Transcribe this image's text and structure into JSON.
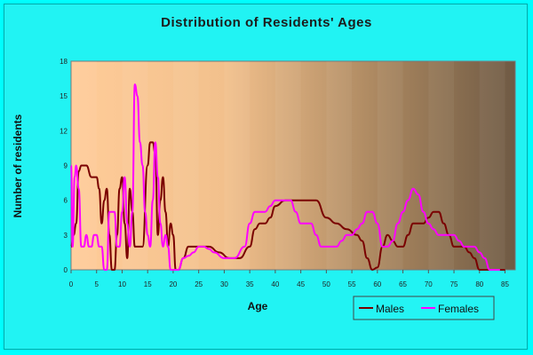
{
  "chart_data": {
    "type": "line",
    "title": "Distribution of Residents' Ages",
    "xlabel": "Age",
    "ylabel": "Number of residents",
    "xlim": [
      0,
      87
    ],
    "ylim": [
      0,
      18
    ],
    "xticks": [
      0,
      5,
      10,
      15,
      20,
      25,
      30,
      35,
      40,
      45,
      50,
      55,
      60,
      65,
      70,
      75,
      80,
      85
    ],
    "yticks": [
      0,
      3,
      6,
      9,
      12,
      15,
      18
    ],
    "grid": false,
    "legend_position": "bottom-right",
    "series": [
      {
        "name": "Males",
        "color": "#7a0000",
        "points": [
          [
            0,
            2
          ],
          [
            0.5,
            3
          ],
          [
            1,
            4
          ],
          [
            1.5,
            8.5
          ],
          [
            2,
            9
          ],
          [
            3,
            9
          ],
          [
            4,
            8
          ],
          [
            5,
            8
          ],
          [
            5.5,
            7
          ],
          [
            6,
            4
          ],
          [
            6.5,
            6
          ],
          [
            7,
            7
          ],
          [
            7.5,
            3
          ],
          [
            8,
            0
          ],
          [
            8.5,
            0
          ],
          [
            9,
            3
          ],
          [
            9.5,
            7
          ],
          [
            10,
            8
          ],
          [
            10.5,
            4
          ],
          [
            11,
            1
          ],
          [
            11.5,
            7
          ],
          [
            12,
            5
          ],
          [
            12.5,
            2
          ],
          [
            13,
            2
          ],
          [
            14,
            2
          ],
          [
            15,
            9
          ],
          [
            15.5,
            11
          ],
          [
            16,
            11
          ],
          [
            16.5,
            10
          ],
          [
            17,
            3
          ],
          [
            17.5,
            6
          ],
          [
            18,
            8
          ],
          [
            18.5,
            5
          ],
          [
            19,
            2
          ],
          [
            19.5,
            4
          ],
          [
            20,
            3
          ],
          [
            20.5,
            0
          ],
          [
            21,
            0
          ],
          [
            22,
            1
          ],
          [
            23,
            2
          ],
          [
            25,
            2
          ],
          [
            27,
            2
          ],
          [
            29,
            1.5
          ],
          [
            31,
            1
          ],
          [
            33,
            1
          ],
          [
            35,
            2
          ],
          [
            36,
            3.5
          ],
          [
            37,
            4
          ],
          [
            38,
            4
          ],
          [
            39,
            4.5
          ],
          [
            40,
            5.5
          ],
          [
            42,
            6
          ],
          [
            45,
            6
          ],
          [
            48,
            6
          ],
          [
            50,
            4.5
          ],
          [
            52,
            4
          ],
          [
            54,
            3.5
          ],
          [
            56,
            3
          ],
          [
            57,
            2.5
          ],
          [
            58,
            1
          ],
          [
            59,
            0
          ],
          [
            60,
            0.2
          ],
          [
            61,
            2
          ],
          [
            62,
            3
          ],
          [
            63,
            2.5
          ],
          [
            64,
            2
          ],
          [
            65,
            2
          ],
          [
            66,
            3
          ],
          [
            67,
            4
          ],
          [
            68,
            4
          ],
          [
            69,
            4
          ],
          [
            70,
            4.5
          ],
          [
            71,
            5
          ],
          [
            72,
            5
          ],
          [
            73,
            4
          ],
          [
            74,
            3
          ],
          [
            75,
            2
          ],
          [
            76,
            2
          ],
          [
            77,
            2
          ],
          [
            78,
            1.5
          ],
          [
            79,
            1
          ],
          [
            80,
            0
          ],
          [
            82,
            0
          ],
          [
            84,
            0
          ],
          [
            85,
            0
          ]
        ]
      },
      {
        "name": "Females",
        "color": "#ff00ff",
        "points": [
          [
            0,
            9
          ],
          [
            0.3,
            2
          ],
          [
            0.7,
            8
          ],
          [
            1,
            9
          ],
          [
            1.5,
            7
          ],
          [
            2,
            2
          ],
          [
            2.5,
            2
          ],
          [
            3,
            3
          ],
          [
            3.5,
            2
          ],
          [
            4,
            2
          ],
          [
            4.5,
            3
          ],
          [
            5,
            3
          ],
          [
            5.5,
            2
          ],
          [
            6,
            2
          ],
          [
            6.5,
            0
          ],
          [
            7,
            0
          ],
          [
            7.5,
            5
          ],
          [
            8,
            5
          ],
          [
            8.5,
            5
          ],
          [
            9,
            2
          ],
          [
            9.5,
            2
          ],
          [
            10,
            5
          ],
          [
            10.5,
            8
          ],
          [
            11,
            4
          ],
          [
            11.5,
            2
          ],
          [
            12,
            5
          ],
          [
            12.5,
            16
          ],
          [
            13,
            15
          ],
          [
            13.5,
            11
          ],
          [
            14,
            9
          ],
          [
            14.5,
            5
          ],
          [
            15,
            3
          ],
          [
            15.5,
            2
          ],
          [
            16,
            6
          ],
          [
            16.5,
            11
          ],
          [
            17,
            8
          ],
          [
            17.5,
            4
          ],
          [
            18,
            2
          ],
          [
            18.5,
            3
          ],
          [
            19,
            2
          ],
          [
            19.5,
            0
          ],
          [
            20,
            0
          ],
          [
            21,
            0
          ],
          [
            22,
            1
          ],
          [
            23,
            1.2
          ],
          [
            24,
            1.5
          ],
          [
            25,
            2
          ],
          [
            26,
            2
          ],
          [
            27,
            1.8
          ],
          [
            28,
            1.5
          ],
          [
            30,
            1
          ],
          [
            32,
            1
          ],
          [
            34,
            2
          ],
          [
            35,
            4
          ],
          [
            36,
            5
          ],
          [
            37,
            5
          ],
          [
            38,
            5
          ],
          [
            39,
            5.5
          ],
          [
            40,
            6
          ],
          [
            41,
            6
          ],
          [
            42,
            6
          ],
          [
            43,
            6
          ],
          [
            44,
            5
          ],
          [
            45,
            4
          ],
          [
            46,
            4
          ],
          [
            47,
            4
          ],
          [
            48,
            3
          ],
          [
            49,
            2
          ],
          [
            50,
            2
          ],
          [
            52,
            2
          ],
          [
            53,
            2.5
          ],
          [
            54,
            3
          ],
          [
            55,
            3
          ],
          [
            56,
            3.5
          ],
          [
            57,
            4
          ],
          [
            58,
            5
          ],
          [
            59,
            5
          ],
          [
            60,
            4
          ],
          [
            61,
            2
          ],
          [
            62,
            2
          ],
          [
            63,
            2.5
          ],
          [
            64,
            4
          ],
          [
            65,
            5
          ],
          [
            66,
            6
          ],
          [
            67,
            7
          ],
          [
            68,
            6.5
          ],
          [
            69,
            5
          ],
          [
            70,
            4
          ],
          [
            71,
            3.5
          ],
          [
            72,
            3
          ],
          [
            73,
            3
          ],
          [
            74,
            3
          ],
          [
            75,
            3
          ],
          [
            76,
            2.5
          ],
          [
            77,
            2
          ],
          [
            78,
            2
          ],
          [
            79,
            2
          ],
          [
            80,
            1.5
          ],
          [
            81,
            1
          ],
          [
            82,
            0
          ],
          [
            83,
            0
          ],
          [
            84,
            0
          ]
        ]
      }
    ]
  }
}
